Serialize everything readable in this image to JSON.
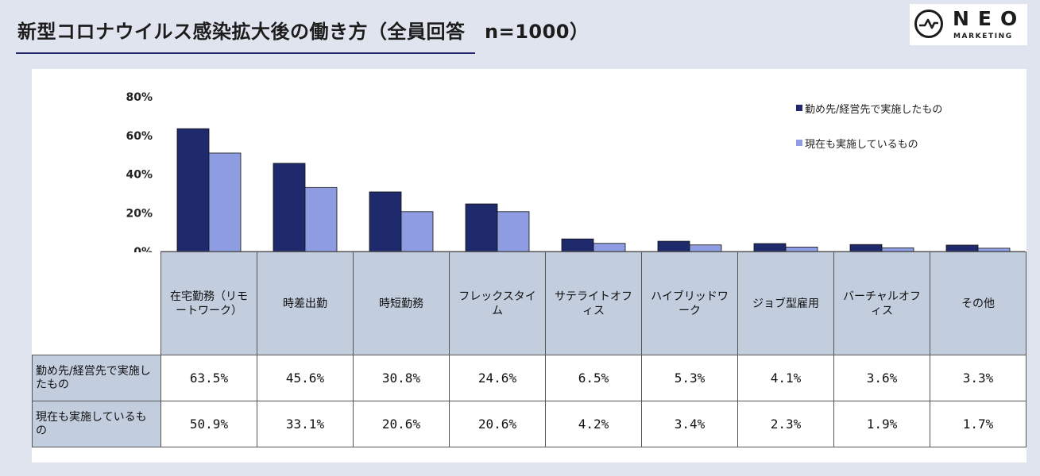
{
  "header": {
    "title": "新型コロナウイルス感染拡大後の働き方（全員回答　n=1000）"
  },
  "logo": {
    "word": "NEO",
    "sub": "MARKETING"
  },
  "colors": {
    "series1": "#1f2a6d",
    "series2": "#8e9ce2",
    "accent": "#23276e",
    "table_header": "#c2cdde"
  },
  "chart_data": {
    "type": "bar",
    "title": "新型コロナウイルス感染拡大後の働き方（全員回答　n=1000）",
    "categories": [
      "在宅勤務（リモートワーク）",
      "時差出勤",
      "時短勤務",
      "フレックスタイム",
      "サテライトオフィス",
      "ハイブリッドワーク",
      "ジョブ型雇用",
      "バーチャルオフィス",
      "その他"
    ],
    "series": [
      {
        "name": "勤め先/経営先で実施したもの",
        "values": [
          63.5,
          45.6,
          30.8,
          24.6,
          6.5,
          5.3,
          4.1,
          3.6,
          3.3
        ]
      },
      {
        "name": "現在も実施しているもの",
        "values": [
          50.9,
          33.1,
          20.6,
          20.6,
          4.2,
          3.4,
          2.3,
          1.9,
          1.7
        ]
      }
    ],
    "yticks": [
      "0%",
      "20%",
      "40%",
      "60%",
      "80%"
    ],
    "ylim": [
      0,
      80
    ],
    "xlabel": "",
    "ylabel": "",
    "legend": "top-right",
    "grid": false
  },
  "table": {
    "category_labels": [
      "在宅勤務（リモートワーク）",
      "時差出勤",
      "時短勤務",
      "フレックスタイム",
      "サテライトオフィス",
      "ハイブリッドワーク",
      "ジョブ型雇用",
      "バーチャルオフィス",
      "その他"
    ],
    "rows": [
      {
        "label": "勤め先/経営先で実施したもの",
        "values": [
          "63.5%",
          "45.6%",
          "30.8%",
          "24.6%",
          "6.5%",
          "5.3%",
          "4.1%",
          "3.6%",
          "3.3%"
        ]
      },
      {
        "label": "現在も実施しているもの",
        "values": [
          "50.9%",
          "33.1%",
          "20.6%",
          "20.6%",
          "4.2%",
          "3.4%",
          "2.3%",
          "1.9%",
          "1.7%"
        ]
      }
    ]
  }
}
